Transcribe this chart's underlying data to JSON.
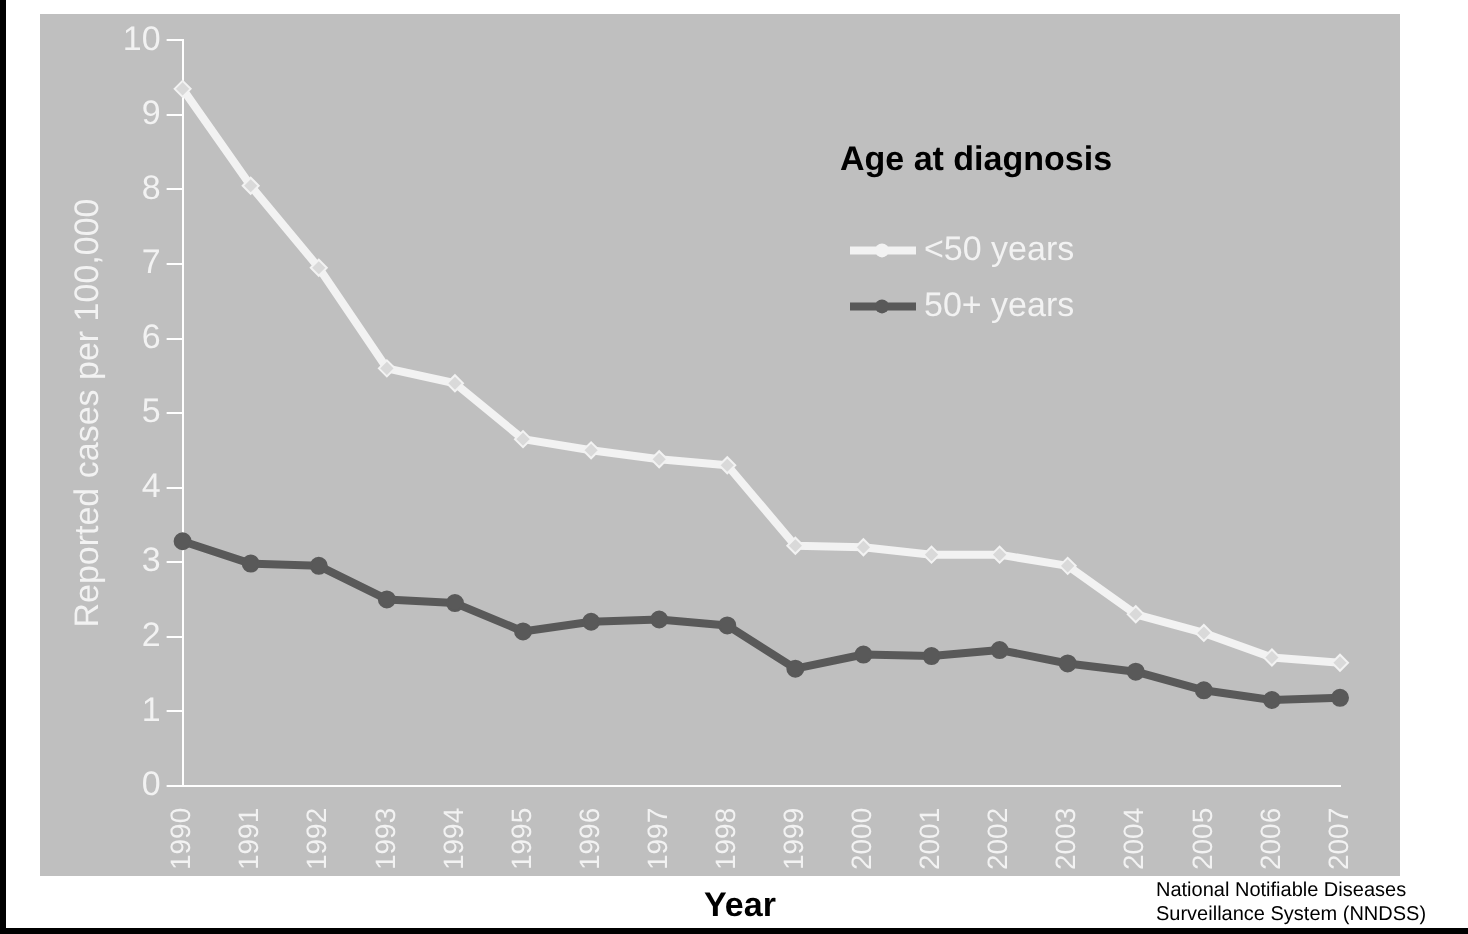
{
  "chart_data": {
    "type": "line",
    "ylabel": "Reported cases per 100,000",
    "xlabel": "Year",
    "legend_title": "Age at diagnosis",
    "legend": "top right",
    "grid": false,
    "categories": [
      "1990",
      "1991",
      "1992",
      "1993",
      "1994",
      "1995",
      "1996",
      "1997",
      "1998",
      "1999",
      "2000",
      "2001",
      "2002",
      "2003",
      "2004",
      "2005",
      "2006",
      "2007"
    ],
    "ylim": [
      0,
      10
    ],
    "yticks": [
      0,
      1,
      2,
      3,
      4,
      5,
      6,
      7,
      8,
      9,
      10
    ],
    "series": [
      {
        "name": "<50 years",
        "color": "#f2f2f2",
        "marker": "diamond",
        "values": [
          9.35,
          8.05,
          6.95,
          5.6,
          5.4,
          4.65,
          4.5,
          4.38,
          4.3,
          3.22,
          3.2,
          3.1,
          3.1,
          2.95,
          2.3,
          2.05,
          1.72,
          1.65
        ]
      },
      {
        "name": "50+ years",
        "color": "#595959",
        "marker": "circle",
        "values": [
          3.28,
          2.98,
          2.95,
          2.5,
          2.45,
          2.07,
          2.2,
          2.23,
          2.15,
          1.57,
          1.76,
          1.74,
          1.82,
          1.64,
          1.53,
          1.28,
          1.15,
          1.18
        ]
      }
    ],
    "annotations": [
      "National Notifiable Diseases Surveillance System (NNDSS)"
    ]
  }
}
